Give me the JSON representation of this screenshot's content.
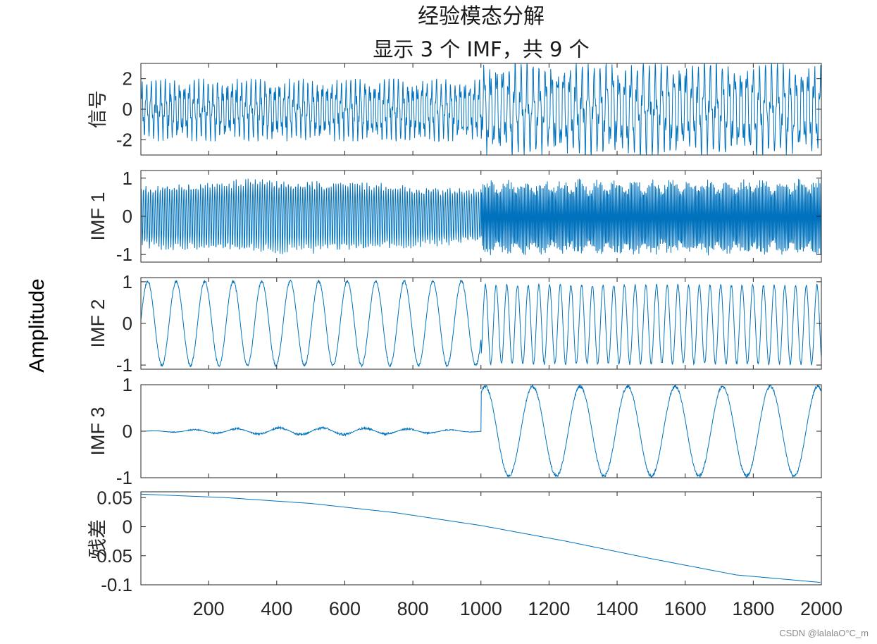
{
  "chart_data": {
    "type": "line",
    "title": "经验模态分解",
    "subtitle": "显示 3 个 IMF，共 9 个",
    "common_ylabel": "Amplitude",
    "xlim": [
      1,
      2000
    ],
    "x_ticks": [
      200,
      400,
      600,
      800,
      1000,
      1200,
      1400,
      1600,
      1800,
      2000
    ],
    "x_tick_labels": [
      "200",
      "400",
      "600",
      "800",
      "1000",
      "1200",
      "1400",
      "1600",
      "1800",
      "2000"
    ],
    "grid": false,
    "line_color": "#0072bd",
    "panels": [
      {
        "ylabel": "信号",
        "ylim": [
          -3,
          3
        ],
        "yticks": [
          -2,
          0,
          2
        ],
        "ytick_labels": [
          "-2",
          "0",
          "2"
        ],
        "series": {
          "x": [
            1,
            1000,
            1001,
            2000
          ],
          "y_range_min": [
            -2.1,
            -2.1,
            -3.0,
            -3.0
          ],
          "y_range_max": [
            2.0,
            2.0,
            3.0,
            3.0
          ]
        }
      },
      {
        "ylabel": "IMF 1",
        "ylim": [
          -1.2,
          1.2
        ],
        "yticks": [
          -1,
          0,
          1
        ],
        "ytick_labels": [
          "-1",
          "0",
          "1"
        ],
        "series": {
          "x": [
            1,
            1000,
            1001,
            2000
          ],
          "y_range_min": [
            -1.0,
            -1.0,
            -1.15,
            -1.15
          ],
          "y_range_max": [
            1.0,
            1.0,
            1.1,
            1.1
          ]
        }
      },
      {
        "ylabel": "IMF 2",
        "ylim": [
          -1.1,
          1.1
        ],
        "yticks": [
          -1,
          0,
          1
        ],
        "ytick_labels": [
          "-1",
          "0",
          "1"
        ],
        "series": {
          "x": [
            1,
            1000,
            1001,
            2000
          ],
          "y_range_min": [
            -1.05,
            -1.05,
            -1.0,
            -1.0
          ],
          "y_range_max": [
            1.05,
            1.05,
            0.95,
            0.95
          ]
        }
      },
      {
        "ylabel": "IMF 3",
        "ylim": [
          -1,
          1
        ],
        "yticks": [
          -1,
          0,
          1
        ],
        "ytick_labels": [
          "-1",
          "0",
          "1"
        ],
        "series": {
          "x": [
            1,
            1000,
            1001,
            2000
          ],
          "y_range_min": [
            -0.1,
            -0.1,
            -1.0,
            -1.0
          ],
          "y_range_max": [
            0.1,
            0.1,
            1.0,
            1.0
          ]
        }
      },
      {
        "ylabel": "残差",
        "ylim": [
          -0.1,
          0.06
        ],
        "yticks": [
          -0.1,
          -0.05,
          0,
          0.05
        ],
        "ytick_labels": [
          "-0.1",
          "-0.05",
          "0",
          "0.05"
        ],
        "series": {
          "x": [
            1,
            250,
            500,
            750,
            1000,
            1250,
            1500,
            1750,
            2000
          ],
          "y": [
            0.056,
            0.05,
            0.04,
            0.024,
            0.002,
            -0.025,
            -0.055,
            -0.083,
            -0.096
          ]
        }
      }
    ]
  },
  "watermark": "CSDN @lalalaO°C_m"
}
